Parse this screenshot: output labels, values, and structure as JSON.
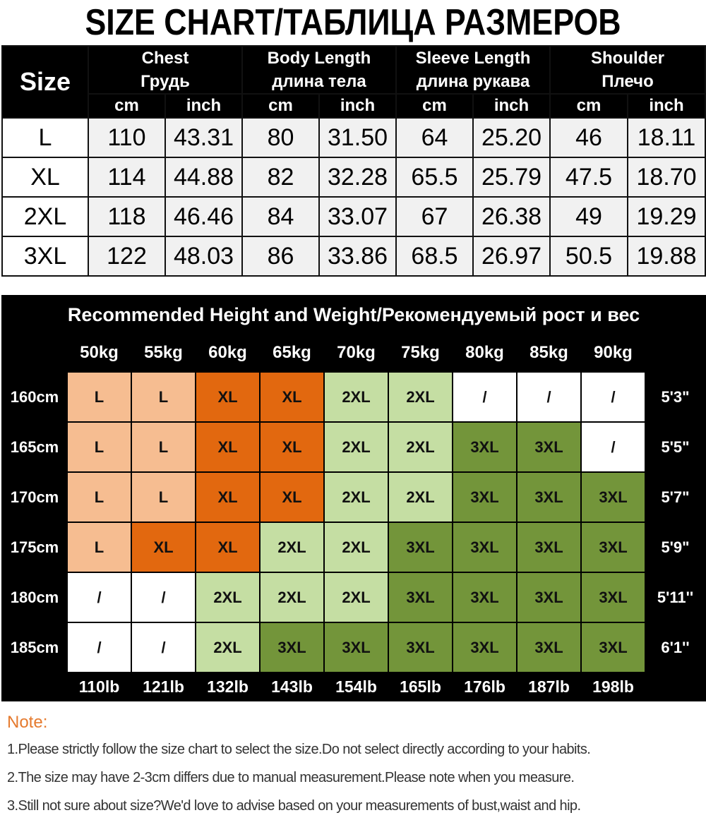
{
  "title": "SIZE CHART/ТАБЛИЦА РАЗМЕРОВ",
  "size_table": {
    "size_header": "Size",
    "measures": [
      {
        "en": "Chest",
        "ru": "Грудь"
      },
      {
        "en": "Body Length",
        "ru": "длина тела"
      },
      {
        "en": "Sleeve Length",
        "ru": "длина рукава"
      },
      {
        "en": "Shoulder",
        "ru": "Плечо"
      }
    ],
    "unit_cm": "cm",
    "unit_inch": "inch",
    "rows": [
      {
        "size": "L",
        "values": [
          "110",
          "43.31",
          "80",
          "31.50",
          "64",
          "25.20",
          "46",
          "18.11"
        ]
      },
      {
        "size": "XL",
        "values": [
          "114",
          "44.88",
          "82",
          "32.28",
          "65.5",
          "25.79",
          "47.5",
          "18.70"
        ]
      },
      {
        "size": "2XL",
        "values": [
          "118",
          "46.46",
          "84",
          "33.07",
          "67",
          "26.38",
          "49",
          "19.29"
        ]
      },
      {
        "size": "3XL",
        "values": [
          "122",
          "48.03",
          "86",
          "33.86",
          "68.5",
          "26.97",
          "50.5",
          "19.88"
        ]
      }
    ]
  },
  "reco": {
    "banner": "Recommended Height and Weight/Рекомендуемый рост и вес",
    "weights_kg": [
      "50kg",
      "55kg",
      "60kg",
      "65kg",
      "70kg",
      "75kg",
      "80kg",
      "85kg",
      "90kg"
    ],
    "weights_lb": [
      "110lb",
      "121lb",
      "132lb",
      "143lb",
      "154lb",
      "165lb",
      "176lb",
      "187lb",
      "198lb"
    ],
    "rows": [
      {
        "cm": "160cm",
        "ft": "5'3\"",
        "sizes": [
          "L",
          "L",
          "XL",
          "XL",
          "2XL",
          "2XL",
          "/",
          "/",
          "/"
        ]
      },
      {
        "cm": "165cm",
        "ft": "5'5\"",
        "sizes": [
          "L",
          "L",
          "XL",
          "XL",
          "2XL",
          "2XL",
          "3XL",
          "3XL",
          "/"
        ]
      },
      {
        "cm": "170cm",
        "ft": "5'7\"",
        "sizes": [
          "L",
          "L",
          "XL",
          "XL",
          "2XL",
          "2XL",
          "3XL",
          "3XL",
          "3XL"
        ]
      },
      {
        "cm": "175cm",
        "ft": "5'9\"",
        "sizes": [
          "L",
          "XL",
          "XL",
          "2XL",
          "2XL",
          "3XL",
          "3XL",
          "3XL",
          "3XL"
        ]
      },
      {
        "cm": "180cm",
        "ft": "5'11''",
        "sizes": [
          "/",
          "/",
          "2XL",
          "2XL",
          "2XL",
          "3XL",
          "3XL",
          "3XL",
          "3XL"
        ]
      },
      {
        "cm": "185cm",
        "ft": "6'1''",
        "sizes": [
          "/",
          "/",
          "2XL",
          "3XL",
          "3XL",
          "3XL",
          "3XL",
          "3XL",
          "3XL"
        ]
      }
    ],
    "colors": {
      "L": "#f6bd91",
      "XL": "#e2680f",
      "2XL": "#c5dea3",
      "3XL": "#73953a",
      "/": "#ffffff"
    }
  },
  "notes": {
    "title": "Note:",
    "lines": [
      "1.Please strictly follow the size chart to select the size.Do not select directly according to your habits.",
      "2.The size may have 2-3cm differs due to manual measurement.Please note when you measure.",
      "3.Still not sure about size?We'd love to advise based on your measurements of bust,waist and hip."
    ]
  }
}
